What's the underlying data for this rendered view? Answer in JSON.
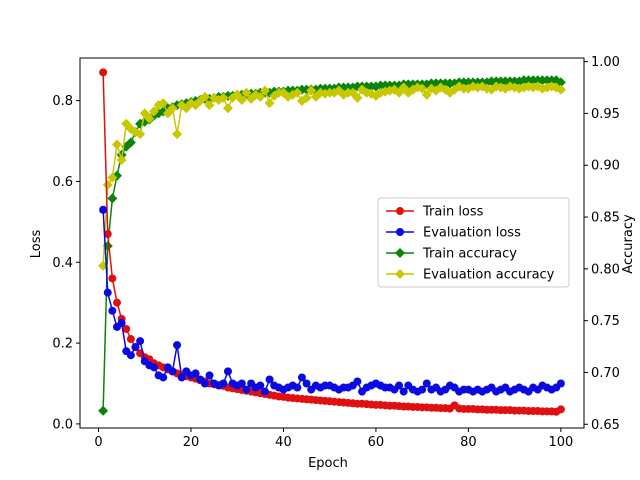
{
  "chart_data": {
    "type": "line",
    "xlabel": "Epoch",
    "ylabel_left": "Loss",
    "ylabel_right": "Accuracy",
    "xlim": [
      -4,
      105
    ],
    "ylim_left": [
      -0.0101,
      0.9055
    ],
    "ylim_right": [
      0.6464,
      1.0035
    ],
    "xticks": [
      0,
      20,
      40,
      60,
      80,
      100
    ],
    "yticks_left": [
      0.0,
      0.2,
      0.4,
      0.6,
      0.8
    ],
    "yticks_right": [
      0.65,
      0.7,
      0.75,
      0.8,
      0.85,
      0.9,
      0.95,
      1.0
    ],
    "legend_position": "center-right",
    "grid": false,
    "series": [
      {
        "name": "Train loss",
        "axis": "left",
        "color": "#e01010",
        "marker": "circle",
        "x": [
          1,
          2,
          3,
          4,
          5,
          6,
          7,
          8,
          9,
          10,
          11,
          12,
          13,
          14,
          15,
          16,
          17,
          18,
          19,
          20,
          21,
          22,
          23,
          24,
          25,
          26,
          27,
          28,
          29,
          30,
          31,
          32,
          33,
          34,
          35,
          36,
          37,
          38,
          39,
          40,
          41,
          42,
          43,
          44,
          45,
          46,
          47,
          48,
          49,
          50,
          51,
          52,
          53,
          54,
          55,
          56,
          57,
          58,
          59,
          60,
          61,
          62,
          63,
          64,
          65,
          66,
          67,
          68,
          69,
          70,
          71,
          72,
          73,
          74,
          75,
          76,
          77,
          78,
          79,
          80,
          81,
          82,
          83,
          84,
          85,
          86,
          87,
          88,
          89,
          90,
          91,
          92,
          93,
          94,
          95,
          96,
          97,
          98,
          99,
          100
        ],
        "values": [
          0.87,
          0.47,
          0.36,
          0.3,
          0.26,
          0.235,
          0.21,
          0.19,
          0.175,
          0.165,
          0.16,
          0.15,
          0.145,
          0.14,
          0.135,
          0.13,
          0.125,
          0.12,
          0.118,
          0.115,
          0.112,
          0.108,
          0.105,
          0.1,
          0.098,
          0.096,
          0.094,
          0.09,
          0.088,
          0.086,
          0.084,
          0.082,
          0.08,
          0.078,
          0.076,
          0.074,
          0.072,
          0.07,
          0.068,
          0.067,
          0.065,
          0.064,
          0.063,
          0.062,
          0.061,
          0.06,
          0.059,
          0.058,
          0.057,
          0.056,
          0.055,
          0.054,
          0.053,
          0.052,
          0.051,
          0.05,
          0.05,
          0.049,
          0.048,
          0.047,
          0.047,
          0.046,
          0.045,
          0.045,
          0.044,
          0.043,
          0.043,
          0.042,
          0.042,
          0.041,
          0.041,
          0.04,
          0.04,
          0.039,
          0.039,
          0.038,
          0.046,
          0.038,
          0.037,
          0.037,
          0.037,
          0.036,
          0.036,
          0.035,
          0.035,
          0.035,
          0.034,
          0.034,
          0.034,
          0.033,
          0.033,
          0.033,
          0.032,
          0.032,
          0.032,
          0.031,
          0.031,
          0.031,
          0.03,
          0.036
        ]
      },
      {
        "name": "Evaluation loss",
        "axis": "left",
        "color": "#0a0ae0",
        "marker": "circle",
        "x": [
          1,
          2,
          3,
          4,
          5,
          6,
          7,
          8,
          9,
          10,
          11,
          12,
          13,
          14,
          15,
          16,
          17,
          18,
          19,
          20,
          21,
          22,
          23,
          24,
          25,
          26,
          27,
          28,
          29,
          30,
          31,
          32,
          33,
          34,
          35,
          36,
          37,
          38,
          39,
          40,
          41,
          42,
          43,
          44,
          45,
          46,
          47,
          48,
          49,
          50,
          51,
          52,
          53,
          54,
          55,
          56,
          57,
          58,
          59,
          60,
          61,
          62,
          63,
          64,
          65,
          66,
          67,
          68,
          69,
          70,
          71,
          72,
          73,
          74,
          75,
          76,
          77,
          78,
          79,
          80,
          81,
          82,
          83,
          84,
          85,
          86,
          87,
          88,
          89,
          90,
          91,
          92,
          93,
          94,
          95,
          96,
          97,
          98,
          99,
          100
        ],
        "values": [
          0.53,
          0.325,
          0.28,
          0.24,
          0.25,
          0.18,
          0.17,
          0.19,
          0.205,
          0.155,
          0.145,
          0.14,
          0.12,
          0.115,
          0.14,
          0.13,
          0.195,
          0.115,
          0.13,
          0.12,
          0.125,
          0.11,
          0.1,
          0.12,
          0.1,
          0.095,
          0.1,
          0.13,
          0.1,
          0.095,
          0.1,
          0.085,
          0.1,
          0.09,
          0.095,
          0.08,
          0.11,
          0.095,
          0.09,
          0.085,
          0.09,
          0.095,
          0.09,
          0.115,
          0.1,
          0.085,
          0.095,
          0.09,
          0.095,
          0.095,
          0.09,
          0.085,
          0.09,
          0.09,
          0.095,
          0.105,
          0.08,
          0.09,
          0.095,
          0.1,
          0.095,
          0.09,
          0.09,
          0.085,
          0.095,
          0.08,
          0.095,
          0.085,
          0.08,
          0.085,
          0.1,
          0.085,
          0.09,
          0.08,
          0.085,
          0.095,
          0.09,
          0.08,
          0.085,
          0.085,
          0.08,
          0.085,
          0.08,
          0.085,
          0.09,
          0.08,
          0.085,
          0.09,
          0.08,
          0.085,
          0.09,
          0.085,
          0.08,
          0.09,
          0.085,
          0.095,
          0.09,
          0.085,
          0.09,
          0.1
        ]
      },
      {
        "name": "Train accuracy",
        "axis": "right",
        "color": "#0a840a",
        "marker": "diamond",
        "x": [
          1,
          2,
          3,
          4,
          5,
          6,
          7,
          8,
          9,
          10,
          11,
          12,
          13,
          14,
          15,
          16,
          17,
          18,
          19,
          20,
          21,
          22,
          23,
          24,
          25,
          26,
          27,
          28,
          29,
          30,
          31,
          32,
          33,
          34,
          35,
          36,
          37,
          38,
          39,
          40,
          41,
          42,
          43,
          44,
          45,
          46,
          47,
          48,
          49,
          50,
          51,
          52,
          53,
          54,
          55,
          56,
          57,
          58,
          59,
          60,
          61,
          62,
          63,
          64,
          65,
          66,
          67,
          68,
          69,
          70,
          71,
          72,
          73,
          74,
          75,
          76,
          77,
          78,
          79,
          80,
          81,
          82,
          83,
          84,
          85,
          86,
          87,
          88,
          89,
          90,
          91,
          92,
          93,
          94,
          95,
          96,
          97,
          98,
          99,
          100
        ],
        "values": [
          0.663,
          0.822,
          0.868,
          0.89,
          0.91,
          0.918,
          0.922,
          0.932,
          0.94,
          0.942,
          0.944,
          0.948,
          0.95,
          0.952,
          0.955,
          0.956,
          0.958,
          0.959,
          0.96,
          0.961,
          0.962,
          0.963,
          0.964,
          0.964,
          0.965,
          0.966,
          0.966,
          0.967,
          0.967,
          0.968,
          0.968,
          0.969,
          0.969,
          0.969,
          0.97,
          0.97,
          0.97,
          0.971,
          0.971,
          0.971,
          0.972,
          0.972,
          0.972,
          0.973,
          0.973,
          0.973,
          0.973,
          0.974,
          0.974,
          0.974,
          0.974,
          0.975,
          0.975,
          0.975,
          0.975,
          0.976,
          0.976,
          0.976,
          0.976,
          0.976,
          0.977,
          0.977,
          0.977,
          0.977,
          0.977,
          0.978,
          0.978,
          0.978,
          0.978,
          0.978,
          0.978,
          0.979,
          0.979,
          0.979,
          0.979,
          0.979,
          0.979,
          0.98,
          0.98,
          0.98,
          0.98,
          0.98,
          0.98,
          0.98,
          0.981,
          0.981,
          0.981,
          0.981,
          0.981,
          0.981,
          0.981,
          0.982,
          0.982,
          0.982,
          0.982,
          0.982,
          0.982,
          0.982,
          0.982,
          0.98
        ]
      },
      {
        "name": "Evaluation accuracy",
        "axis": "right",
        "color": "#c8c800",
        "marker": "diamond",
        "x": [
          1,
          2,
          3,
          4,
          5,
          6,
          7,
          8,
          9,
          10,
          11,
          12,
          13,
          14,
          15,
          16,
          17,
          18,
          19,
          20,
          21,
          22,
          23,
          24,
          25,
          26,
          27,
          28,
          29,
          30,
          31,
          32,
          33,
          34,
          35,
          36,
          37,
          38,
          39,
          40,
          41,
          42,
          43,
          44,
          45,
          46,
          47,
          48,
          49,
          50,
          51,
          52,
          53,
          54,
          55,
          56,
          57,
          58,
          59,
          60,
          61,
          62,
          63,
          64,
          65,
          66,
          67,
          68,
          69,
          70,
          71,
          72,
          73,
          74,
          75,
          76,
          77,
          78,
          79,
          80,
          81,
          82,
          83,
          84,
          85,
          86,
          87,
          88,
          89,
          90,
          91,
          92,
          93,
          94,
          95,
          96,
          97,
          98,
          99,
          100
        ],
        "values": [
          0.803,
          0.881,
          0.888,
          0.92,
          0.905,
          0.94,
          0.935,
          0.932,
          0.93,
          0.95,
          0.945,
          0.952,
          0.958,
          0.96,
          0.95,
          0.955,
          0.93,
          0.958,
          0.955,
          0.96,
          0.958,
          0.962,
          0.966,
          0.958,
          0.965,
          0.963,
          0.965,
          0.955,
          0.965,
          0.968,
          0.963,
          0.97,
          0.964,
          0.968,
          0.966,
          0.972,
          0.96,
          0.967,
          0.97,
          0.97,
          0.966,
          0.968,
          0.97,
          0.962,
          0.965,
          0.972,
          0.966,
          0.97,
          0.969,
          0.97,
          0.97,
          0.972,
          0.968,
          0.97,
          0.97,
          0.965,
          0.973,
          0.97,
          0.969,
          0.967,
          0.97,
          0.971,
          0.972,
          0.973,
          0.97,
          0.975,
          0.97,
          0.973,
          0.975,
          0.974,
          0.968,
          0.974,
          0.972,
          0.975,
          0.973,
          0.97,
          0.973,
          0.976,
          0.974,
          0.974,
          0.976,
          0.975,
          0.976,
          0.974,
          0.973,
          0.976,
          0.975,
          0.974,
          0.976,
          0.975,
          0.974,
          0.975,
          0.976,
          0.975,
          0.976,
          0.974,
          0.975,
          0.976,
          0.975,
          0.973
        ]
      }
    ]
  }
}
